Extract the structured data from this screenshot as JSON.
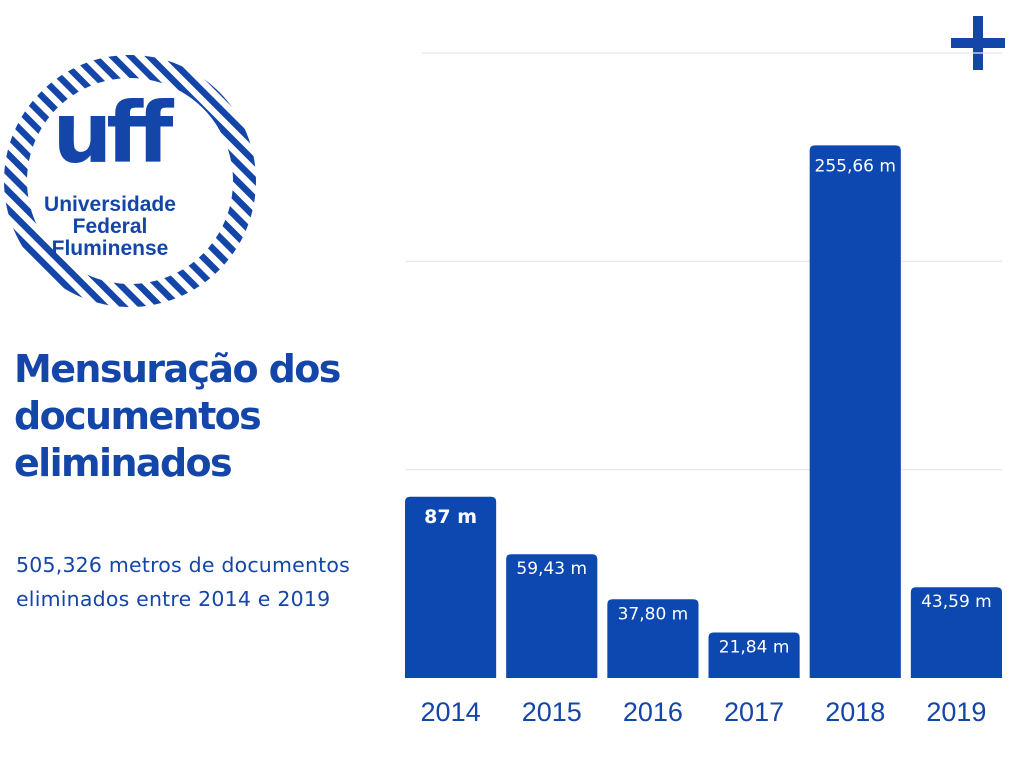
{
  "title": "Mensuração dos documentos eliminados",
  "summary": "505,326 metros de documentos eliminados entre 2014 e 2019",
  "logo": {
    "mark": "uff",
    "name_lines": [
      "Universidade",
      "Federal",
      "Fluminense"
    ]
  },
  "icons": {
    "corner": "plus-icon"
  },
  "colors": {
    "brand": "#1445a8",
    "bar": "#0c48b0",
    "gridline": "#e6e6e6"
  },
  "chart_data": {
    "type": "bar",
    "categories": [
      "2014",
      "2015",
      "2016",
      "2017",
      "2018",
      "2019"
    ],
    "values": [
      87,
      59.43,
      37.8,
      21.84,
      255.66,
      43.59
    ],
    "data_labels": [
      "87 m",
      "59,43 m",
      "37,80 m",
      "21,84 m",
      "255,66 m",
      "43,59 m"
    ],
    "title": "",
    "xlabel": "",
    "ylabel": "",
    "ylim": [
      0,
      300
    ],
    "grid": true,
    "legend": "none"
  }
}
